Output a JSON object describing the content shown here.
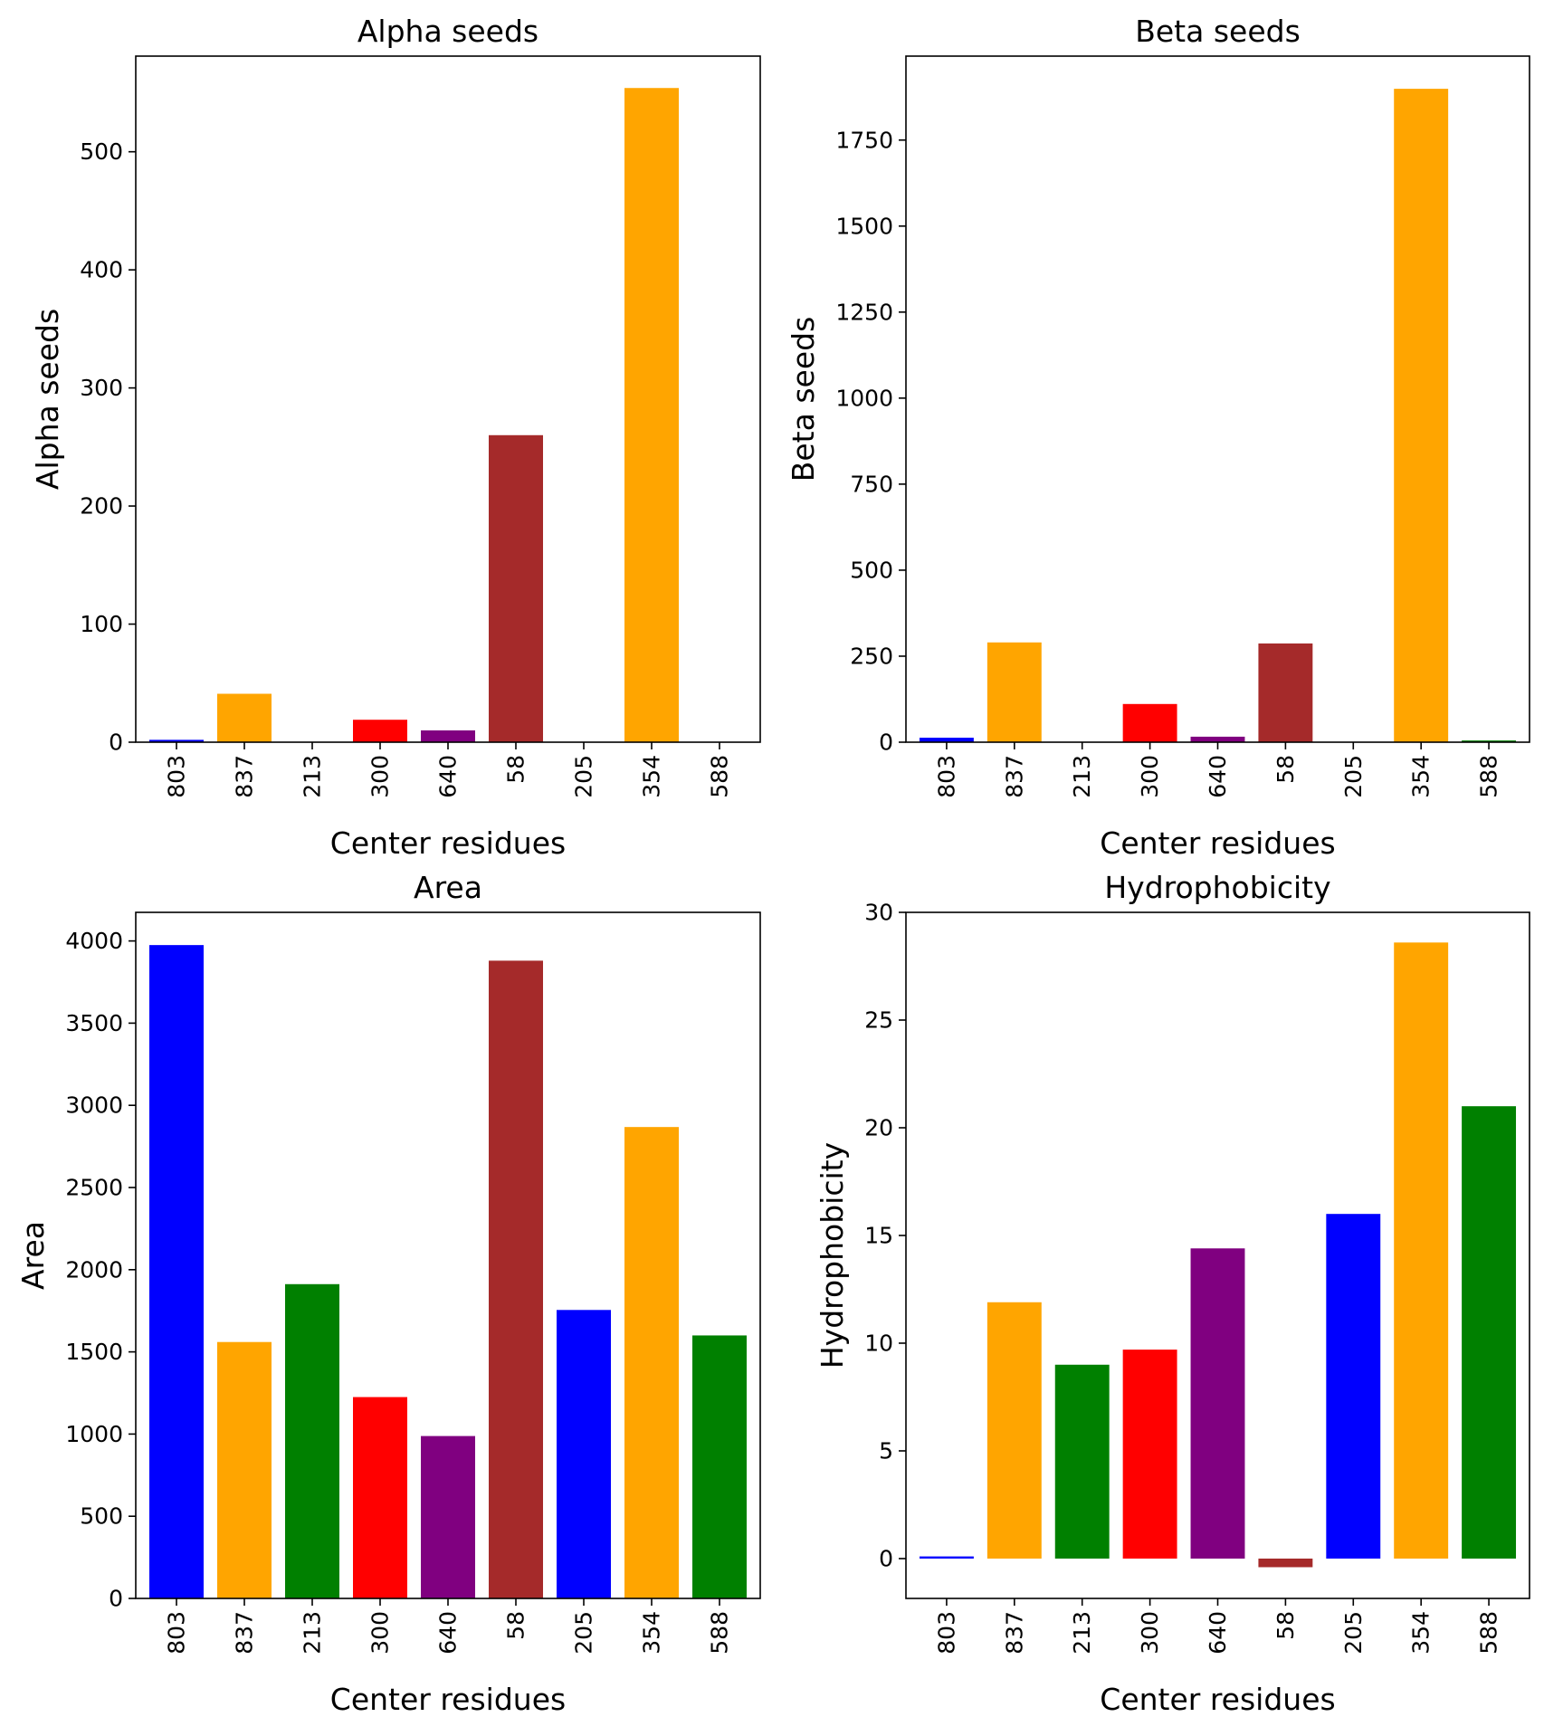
{
  "chart_data": [
    {
      "type": "bar",
      "title": "Alpha seeds",
      "xlabel": "Center residues",
      "ylabel": "Alpha seeds",
      "categories": [
        "803",
        "837",
        "213",
        "300",
        "640",
        "58",
        "205",
        "354",
        "588"
      ],
      "values": [
        2,
        41,
        0,
        19,
        10,
        260,
        0,
        554,
        0
      ],
      "colors": [
        "#0000ff",
        "#ffa500",
        "#008000",
        "#ff0000",
        "#800080",
        "#a52a2a",
        "#0000ff",
        "#ffa500",
        "#008000"
      ],
      "ylim": [
        0,
        581
      ],
      "yticks": [
        0,
        100,
        200,
        300,
        400,
        500
      ],
      "grid": false
    },
    {
      "type": "bar",
      "title": "Beta seeds",
      "xlabel": "Center residues",
      "ylabel": "Beta seeds",
      "categories": [
        "803",
        "837",
        "213",
        "300",
        "640",
        "58",
        "205",
        "354",
        "588"
      ],
      "values": [
        13,
        290,
        0,
        111,
        16,
        287,
        0,
        1899,
        5
      ],
      "colors": [
        "#0000ff",
        "#ffa500",
        "#008000",
        "#ff0000",
        "#800080",
        "#a52a2a",
        "#0000ff",
        "#ffa500",
        "#008000"
      ],
      "ylim": [
        0,
        1994
      ],
      "yticks": [
        0,
        250,
        500,
        750,
        1000,
        1250,
        1500,
        1750
      ],
      "grid": false
    },
    {
      "type": "bar",
      "title": "Area",
      "xlabel": "Center residues",
      "ylabel": "Area",
      "categories": [
        "803",
        "837",
        "213",
        "300",
        "640",
        "58",
        "205",
        "354",
        "588"
      ],
      "values": [
        3975,
        1560,
        1912,
        1225,
        988,
        3880,
        1755,
        2868,
        1600
      ],
      "colors": [
        "#0000ff",
        "#ffa500",
        "#008000",
        "#ff0000",
        "#800080",
        "#a52a2a",
        "#0000ff",
        "#ffa500",
        "#008000"
      ],
      "ylim": [
        0,
        4174
      ],
      "yticks": [
        0,
        500,
        1000,
        1500,
        2000,
        2500,
        3000,
        3500,
        4000
      ],
      "grid": false
    },
    {
      "type": "bar",
      "title": "Hydrophobicity",
      "xlabel": "Center residues",
      "ylabel": "Hydrophobicity",
      "categories": [
        "803",
        "837",
        "213",
        "300",
        "640",
        "58",
        "205",
        "354",
        "588"
      ],
      "values": [
        0.1,
        11.9,
        9.0,
        9.7,
        14.4,
        -0.4,
        16.0,
        28.6,
        21.0
      ],
      "colors": [
        "#0000ff",
        "#ffa500",
        "#008000",
        "#ff0000",
        "#800080",
        "#a52a2a",
        "#0000ff",
        "#ffa500",
        "#008000"
      ],
      "ylim": [
        -1.85,
        30.0
      ],
      "yticks": [
        0,
        5,
        10,
        15,
        20,
        25,
        30
      ],
      "grid": false
    }
  ]
}
